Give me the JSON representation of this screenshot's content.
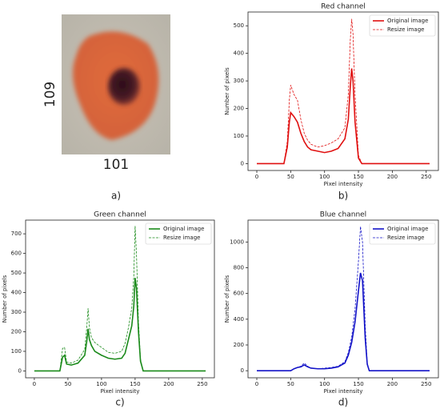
{
  "image_panel": {
    "height_label": "109",
    "width_label": "101",
    "caption": "a)"
  },
  "chart_data": [
    {
      "type": "line",
      "title": "Red channel",
      "xlabel": "Pixel intensity",
      "ylabel": "Number of pixels",
      "caption": "b)",
      "x": [
        0,
        40,
        45,
        48,
        50,
        55,
        60,
        65,
        70,
        75,
        80,
        90,
        100,
        110,
        120,
        130,
        135,
        138,
        140,
        142,
        145,
        150,
        155,
        160,
        255
      ],
      "series": [
        {
          "name": "Original image",
          "color": "#e01010",
          "linestyle": "solid",
          "values": [
            0,
            0,
            60,
            150,
            185,
            170,
            150,
            110,
            80,
            60,
            50,
            45,
            40,
            45,
            55,
            90,
            160,
            280,
            345,
            300,
            150,
            20,
            0,
            0,
            0
          ]
        },
        {
          "name": "Resize image",
          "color": "#e01010",
          "linestyle": "dashed",
          "values": [
            0,
            0,
            80,
            230,
            285,
            250,
            230,
            160,
            110,
            85,
            70,
            60,
            65,
            75,
            90,
            130,
            250,
            450,
            525,
            470,
            250,
            30,
            0,
            0,
            0
          ]
        }
      ],
      "xlim": [
        -13,
        268
      ],
      "ylim": [
        -25,
        550
      ],
      "xticks": [
        0,
        50,
        100,
        150,
        200,
        250
      ],
      "yticks": [
        0,
        100,
        200,
        300,
        400,
        500
      ],
      "legend": "upper right"
    },
    {
      "type": "line",
      "title": "Green channel",
      "xlabel": "Pixel intensity",
      "ylabel": "Number of pixels",
      "caption": "c)",
      "x": [
        0,
        38,
        42,
        45,
        48,
        55,
        65,
        75,
        78,
        80,
        82,
        85,
        90,
        100,
        110,
        120,
        130,
        135,
        140,
        145,
        148,
        150,
        152,
        155,
        158,
        162,
        255
      ],
      "series": [
        {
          "name": "Original image",
          "color": "#1a8a1a",
          "linestyle": "solid",
          "values": [
            0,
            0,
            70,
            80,
            35,
            30,
            40,
            80,
            150,
            215,
            160,
            130,
            100,
            80,
            65,
            60,
            65,
            90,
            160,
            230,
            330,
            475,
            420,
            200,
            50,
            0,
            0
          ]
        },
        {
          "name": "Resize image",
          "color": "#1a8a1a",
          "linestyle": "dashed",
          "values": [
            0,
            0,
            115,
            120,
            45,
            40,
            55,
            110,
            220,
            320,
            220,
            170,
            145,
            120,
            95,
            90,
            100,
            140,
            220,
            320,
            480,
            740,
            600,
            250,
            60,
            0,
            0
          ]
        }
      ],
      "xlim": [
        -13,
        268
      ],
      "ylim": [
        -35,
        770
      ],
      "xticks": [
        0,
        50,
        100,
        150,
        200,
        250
      ],
      "yticks": [
        0,
        100,
        200,
        300,
        400,
        500,
        600,
        700
      ],
      "legend": "upper right"
    },
    {
      "type": "line",
      "title": "Blue channel",
      "xlabel": "Pixel intensity",
      "ylabel": "Number of pixels",
      "caption": "d)",
      "x": [
        0,
        50,
        55,
        60,
        65,
        70,
        75,
        80,
        90,
        100,
        110,
        120,
        130,
        135,
        140,
        145,
        150,
        153,
        156,
        160,
        163,
        166,
        255
      ],
      "series": [
        {
          "name": "Original image",
          "color": "#1414c8",
          "linestyle": "solid",
          "values": [
            0,
            0,
            15,
            25,
            30,
            45,
            30,
            20,
            15,
            15,
            20,
            30,
            60,
            120,
            220,
            380,
            620,
            760,
            700,
            250,
            50,
            0,
            0
          ]
        },
        {
          "name": "Resize image",
          "color": "#1414c8",
          "linestyle": "dashed",
          "values": [
            0,
            0,
            15,
            25,
            35,
            60,
            35,
            20,
            15,
            20,
            25,
            35,
            70,
            140,
            260,
            480,
            850,
            1120,
            1000,
            350,
            60,
            0,
            0
          ]
        }
      ],
      "xlim": [
        -13,
        268
      ],
      "ylim": [
        -55,
        1170
      ],
      "xticks": [
        0,
        50,
        100,
        150,
        200,
        250
      ],
      "yticks": [
        0,
        200,
        400,
        600,
        800,
        1000
      ],
      "legend": "upper right"
    }
  ]
}
